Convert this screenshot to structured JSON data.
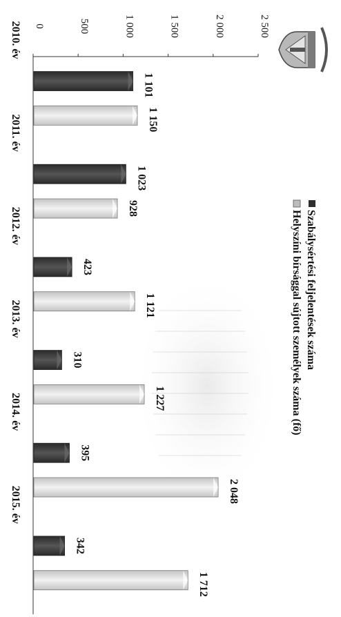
{
  "chart_data": {
    "type": "bar",
    "orientation": "vertical-rotated",
    "categories": [
      "2010. év",
      "2011. év",
      "2012. év",
      "2013. év",
      "2014. év",
      "2015. év"
    ],
    "series": [
      {
        "name": "Szabálysértési feljelentések száma",
        "values": [
          1101,
          1023,
          423,
          310,
          395,
          342
        ],
        "value_labels": [
          "1 101",
          "1 023",
          "423",
          "310",
          "395",
          "342"
        ],
        "color": "#3a3a3a"
      },
      {
        "name": "Helyszíni bírsággal sújtott személyek száma (fő)",
        "values": [
          1150,
          928,
          1121,
          1227,
          2048,
          1712
        ],
        "value_labels": [
          "1 150",
          "928",
          "1 121",
          "1 227",
          "2 048",
          "1 712"
        ],
        "color": "#d6d6d6"
      }
    ],
    "ylim": [
      0,
      2500
    ],
    "ticks": [
      0,
      500,
      1000,
      1500,
      2000,
      2500
    ],
    "tick_labels": [
      "0",
      "500",
      "1 000",
      "1 500",
      "2 000",
      "2 500"
    ],
    "legend_position": "top",
    "grid": false,
    "emblem_icon": "coat-of-arms-icon"
  }
}
